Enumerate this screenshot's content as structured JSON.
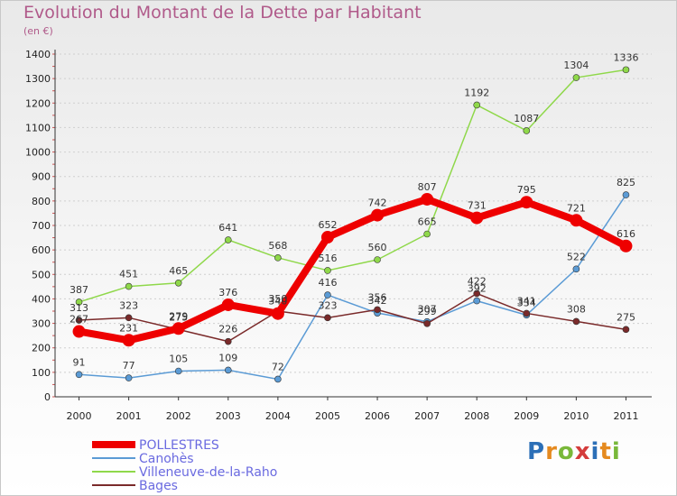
{
  "title": "Evolution du Montant de la Dette par Habitant",
  "subtitle": "(en €)",
  "logo": {
    "letters": [
      "P",
      "r",
      "o",
      "x",
      "i",
      "t",
      "i"
    ]
  },
  "chart_data": {
    "type": "line",
    "ylim": [
      0,
      1400
    ],
    "yticks": [
      0,
      100,
      200,
      300,
      400,
      500,
      600,
      700,
      800,
      900,
      1000,
      1100,
      1200,
      1300,
      1400
    ],
    "categories": [
      "2000",
      "2001",
      "2002",
      "2003",
      "2004",
      "2005",
      "2006",
      "2007",
      "2008",
      "2009",
      "2010",
      "2011"
    ],
    "legend_position": "bottom-left",
    "series": [
      {
        "name": "POLLESTRES",
        "color": "#ee0000",
        "values": [
          267,
          231,
          279,
          376,
          340,
          652,
          742,
          807,
          731,
          795,
          721,
          616
        ]
      },
      {
        "name": "Canohès",
        "color": "#5b9bd5",
        "values": [
          91,
          77,
          105,
          109,
          72,
          416,
          342,
          307,
          392,
          334,
          522,
          825
        ]
      },
      {
        "name": "Villeneuve-de-la-Raho",
        "color": "#8fd84a",
        "values": [
          387,
          451,
          465,
          641,
          568,
          516,
          560,
          665,
          1192,
          1087,
          1304,
          1336
        ]
      },
      {
        "name": "Bages",
        "color": "#7a2a2a",
        "values": [
          313,
          323,
          275,
          226,
          350,
          323,
          356,
          299,
          422,
          341,
          308,
          275
        ]
      }
    ]
  }
}
